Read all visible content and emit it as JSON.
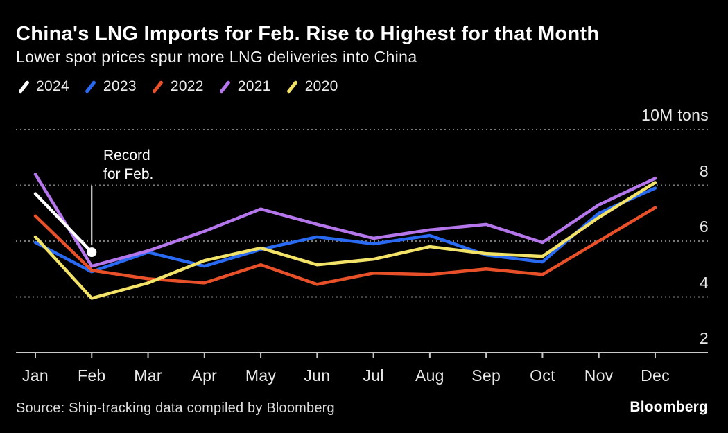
{
  "header": {
    "title": "China's LNG Imports for Feb. Rise to Highest for that Month",
    "subtitle": "Lower spot prices spur more LNG deliveries into China"
  },
  "legend": [
    {
      "label": "2024",
      "color": "#FFFFFF"
    },
    {
      "label": "2023",
      "color": "#2A6AF2"
    },
    {
      "label": "2022",
      "color": "#E8502A"
    },
    {
      "label": "2021",
      "color": "#B576EC"
    },
    {
      "label": "2020",
      "color": "#F2E368"
    }
  ],
  "annotation": {
    "line1": "Record",
    "line2": "for Feb."
  },
  "y_axis": {
    "unit_label": "10M tons",
    "ticks": [
      {
        "value": 10,
        "label": "10M tons"
      },
      {
        "value": 8,
        "label": "8"
      },
      {
        "value": 6,
        "label": "6"
      },
      {
        "value": 4,
        "label": "4"
      },
      {
        "value": 2,
        "label": "2"
      }
    ]
  },
  "footer": {
    "source": "Source: Ship-tracking data compiled by Bloomberg",
    "logo": "Bloomberg"
  },
  "chart_data": {
    "type": "line",
    "title": "China's LNG Imports for Feb. Rise to Highest for that Month",
    "subtitle": "Lower spot prices spur more LNG deliveries into China",
    "unit": "10M tons",
    "ylim": [
      2,
      10
    ],
    "grid": "horizontal-dotted",
    "legend_position": "top-left",
    "categories": [
      "Jan",
      "Feb",
      "Mar",
      "Apr",
      "May",
      "Jun",
      "Jul",
      "Aug",
      "Sep",
      "Oct",
      "Nov",
      "Dec"
    ],
    "series": [
      {
        "name": "2023",
        "color": "#2A6AF2",
        "values": [
          5.95,
          4.9,
          5.6,
          5.1,
          5.7,
          6.15,
          5.9,
          6.2,
          5.5,
          5.25,
          7.0,
          7.9
        ]
      },
      {
        "name": "2022",
        "color": "#E8502A",
        "values": [
          6.9,
          4.95,
          4.65,
          4.5,
          5.15,
          4.45,
          4.85,
          4.8,
          5.0,
          4.8,
          6.0,
          7.2
        ]
      },
      {
        "name": "2021",
        "color": "#B576EC",
        "values": [
          8.4,
          5.1,
          5.65,
          6.35,
          7.15,
          6.6,
          6.1,
          6.4,
          6.6,
          5.95,
          7.3,
          8.25
        ]
      },
      {
        "name": "2020",
        "color": "#F2E368",
        "values": [
          6.15,
          3.95,
          4.5,
          5.3,
          5.75,
          5.15,
          5.35,
          5.8,
          5.55,
          5.45,
          6.85,
          8.1
        ]
      },
      {
        "name": "2024",
        "color": "#FFFFFF",
        "values": [
          7.7,
          5.6
        ],
        "marker_last": true,
        "annotation": "Record for Feb."
      }
    ]
  }
}
